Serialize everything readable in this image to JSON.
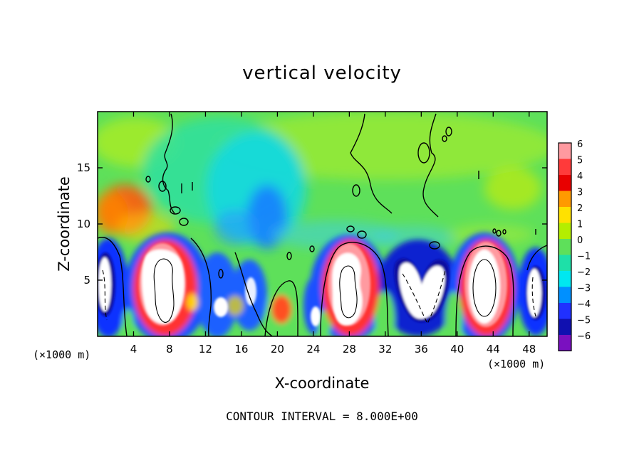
{
  "chart_data": {
    "type": "heatmap",
    "title": "vertical velocity",
    "xlabel": "X-coordinate",
    "ylabel": "Z-coordinate",
    "x_unit_left": "(×1000 m)",
    "x_unit_right": "(×1000 m)",
    "x_ticks": [
      4,
      8,
      12,
      16,
      20,
      24,
      28,
      32,
      36,
      40,
      44,
      48
    ],
    "y_ticks": [
      5,
      10,
      15
    ],
    "xlim": [
      0,
      50
    ],
    "ylim": [
      0,
      20
    ],
    "colorbar": {
      "ticks": [
        6,
        5,
        4,
        3,
        2,
        1,
        0,
        -1,
        -2,
        -3,
        -4,
        -5,
        -6
      ],
      "tick_labels": [
        "6",
        "5",
        "4",
        "3",
        "2",
        "1",
        "0",
        "−1",
        "−2",
        "−3",
        "−4",
        "−5",
        "−6"
      ],
      "colors": [
        "#ff9aa0",
        "#ff3a3a",
        "#e80000",
        "#ff9a00",
        "#ffe100",
        "#b4ee00",
        "#5ee05a",
        "#1ee0a8",
        "#00e8f0",
        "#0090ff",
        "#2030ff",
        "#1010b0",
        "#7a10c0"
      ]
    },
    "background_color": "#5ee05a",
    "updrafts": [
      {
        "x": 7.2,
        "z_min": 1.0,
        "z_max": 8.5,
        "peak": "above 6"
      },
      {
        "x": 28.2,
        "z_min": 1.2,
        "z_max": 8.8,
        "peak": "above 6"
      },
      {
        "x": 42.8,
        "z_min": 1.0,
        "z_max": 8.8,
        "peak": "above 6"
      }
    ],
    "downdrafts": [
      {
        "x": 1.0,
        "z_min": 0.8,
        "z_max": 8.5,
        "peak": "below -6"
      },
      {
        "x": 36.0,
        "z_min": 1.0,
        "z_max": 8.5,
        "peak": "below -6"
      },
      {
        "x": 48.5,
        "z_min": 1.0,
        "z_max": 7.5,
        "peak": "below -6"
      }
    ],
    "contour_interval_label": "CONTOUR INTERVAL = 8.000E+00"
  }
}
